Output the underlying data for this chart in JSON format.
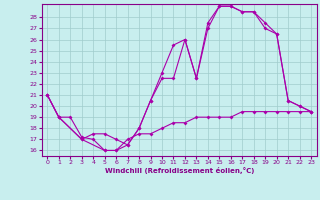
{
  "xlabel": "Windchill (Refroidissement éolien,°C)",
  "bg_color": "#c8eeee",
  "grid_color": "#a0cccc",
  "line_color": "#aa00aa",
  "xlim": [
    -0.5,
    23.5
  ],
  "ylim": [
    15.5,
    29.2
  ],
  "xticks": [
    0,
    1,
    2,
    3,
    4,
    5,
    6,
    7,
    8,
    9,
    10,
    11,
    12,
    13,
    14,
    15,
    16,
    17,
    18,
    19,
    20,
    21,
    22,
    23
  ],
  "yticks": [
    16,
    17,
    18,
    19,
    20,
    21,
    22,
    23,
    24,
    25,
    26,
    27,
    28
  ],
  "line1_x": [
    0,
    1,
    3,
    5,
    6,
    7,
    8,
    9,
    10,
    11,
    12,
    13,
    14,
    15,
    16,
    17,
    18,
    19,
    20,
    21,
    22,
    23
  ],
  "line1_y": [
    21,
    19,
    17,
    16,
    16,
    16.5,
    18,
    20.5,
    23,
    25.5,
    26,
    22.5,
    27.5,
    29,
    29,
    28.5,
    28.5,
    27.5,
    26.5,
    20.5,
    20,
    19.5
  ],
  "line2_x": [
    0,
    1,
    3,
    4,
    5,
    6,
    7,
    8,
    9,
    10,
    11,
    12,
    13,
    14,
    15,
    16,
    17,
    18,
    19,
    20,
    21,
    22,
    23
  ],
  "line2_y": [
    21,
    19,
    17,
    17.5,
    17.5,
    17,
    16.5,
    18,
    20.5,
    22.5,
    22.5,
    26,
    22.5,
    27,
    29,
    29,
    28.5,
    28.5,
    27,
    26.5,
    20.5,
    20,
    19.5
  ],
  "line3_x": [
    0,
    1,
    2,
    3,
    4,
    5,
    6,
    7,
    8,
    9,
    10,
    11,
    12,
    13,
    14,
    15,
    16,
    17,
    18,
    19,
    20,
    21,
    22,
    23
  ],
  "line3_y": [
    21,
    19,
    19,
    17.2,
    17,
    16,
    16,
    17,
    17.5,
    17.5,
    18,
    18.5,
    18.5,
    19,
    19,
    19,
    19,
    19.5,
    19.5,
    19.5,
    19.5,
    19.5,
    19.5,
    19.5
  ]
}
